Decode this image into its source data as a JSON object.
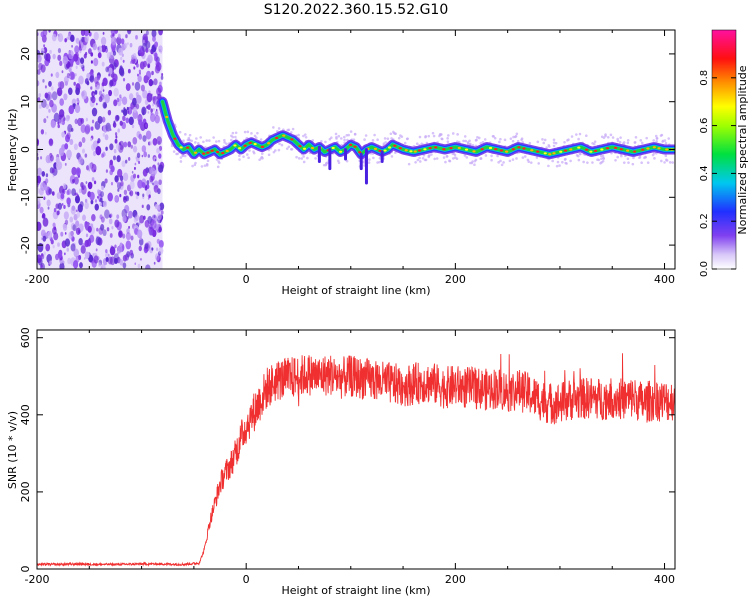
{
  "title": "S120.2022.360.15.52.G10",
  "colors": {
    "snr_line": "#f03030",
    "axis": "#000000"
  },
  "chart_data": [
    {
      "type": "heatmap",
      "xlabel": "Height of straight line (km)",
      "ylabel": "Frequency (Hz)",
      "xlim": [
        -200,
        410
      ],
      "ylim": [
        -25,
        25
      ],
      "x_ticks": [
        -200,
        0,
        200,
        400
      ],
      "y_ticks": [
        -20,
        -10,
        0,
        10,
        20
      ],
      "colorbar": {
        "label": "Normalized spectral amplitude",
        "range": [
          0,
          1
        ],
        "ticks": [
          "0.0",
          "0.2",
          "0.4",
          "0.6",
          "0.8"
        ]
      },
      "noise_region_x": [
        -200,
        -80
      ],
      "ridge": {
        "x": [
          -80,
          -75,
          -70,
          -65,
          -60,
          -55,
          -50,
          -45,
          -40,
          -35,
          -30,
          -25,
          -20,
          -15,
          -10,
          -5,
          0,
          5,
          10,
          15,
          20,
          25,
          30,
          35,
          40,
          45,
          50,
          55,
          60,
          65,
          70,
          75,
          80,
          85,
          90,
          95,
          100,
          105,
          110,
          115,
          120,
          125,
          130,
          135,
          140,
          145,
          150,
          160,
          170,
          180,
          190,
          200,
          210,
          220,
          230,
          240,
          250,
          260,
          270,
          280,
          290,
          300,
          310,
          320,
          330,
          340,
          350,
          360,
          370,
          380,
          390,
          400,
          410
        ],
        "y": [
          10,
          6,
          3,
          1,
          0,
          0.5,
          -1,
          0,
          -1,
          -0.5,
          0,
          -1,
          -0.5,
          0,
          1,
          0,
          1,
          1.5,
          1,
          0.5,
          1,
          2,
          2.5,
          3,
          2.5,
          2,
          1,
          0,
          1,
          0,
          0.5,
          -0.5,
          0,
          0.5,
          -0.5,
          0,
          1,
          0.5,
          -1,
          0,
          0.5,
          0,
          -0.5,
          0,
          1,
          0.5,
          0,
          -0.5,
          0,
          0.5,
          0,
          0.5,
          0,
          -0.5,
          0.5,
          0,
          -0.5,
          0.5,
          0,
          -0.5,
          -1,
          -0.5,
          0,
          0.5,
          -0.5,
          0,
          0.5,
          0,
          -0.5,
          0,
          0.5,
          0,
          0
        ]
      }
    },
    {
      "type": "line",
      "xlabel": "Height of straight line (km)",
      "ylabel": "SNR (10 * v/v)",
      "xlim": [
        -200,
        410
      ],
      "ylim": [
        0,
        620
      ],
      "x_ticks": [
        -200,
        0,
        200,
        400
      ],
      "y_ticks": [
        0,
        200,
        400,
        600
      ],
      "series": [
        {
          "x": [
            -200,
            -180,
            -160,
            -140,
            -120,
            -100,
            -80,
            -60,
            -45,
            -40,
            -35,
            -30,
            -25,
            -20,
            -15,
            -10,
            -5,
            0,
            10,
            20,
            30,
            40,
            50,
            60,
            70,
            80,
            90,
            100,
            110,
            120,
            130,
            140,
            150,
            160,
            170,
            180,
            190,
            200,
            210,
            220,
            230,
            240,
            250,
            260,
            270,
            280,
            290,
            300,
            310,
            320,
            330,
            340,
            350,
            360,
            370,
            380,
            390,
            400,
            410
          ],
          "y": [
            12,
            12,
            13,
            12,
            12,
            13,
            13,
            12,
            15,
            50,
            120,
            170,
            220,
            250,
            270,
            300,
            340,
            370,
            420,
            470,
            490,
            495,
            500,
            505,
            500,
            505,
            495,
            500,
            495,
            490,
            485,
            480,
            475,
            480,
            485,
            480,
            470,
            475,
            470,
            470,
            465,
            470,
            460,
            465,
            455,
            440,
            430,
            430,
            440,
            440,
            445,
            440,
            445,
            440,
            445,
            430,
            440,
            435,
            440
          ]
        }
      ]
    }
  ]
}
